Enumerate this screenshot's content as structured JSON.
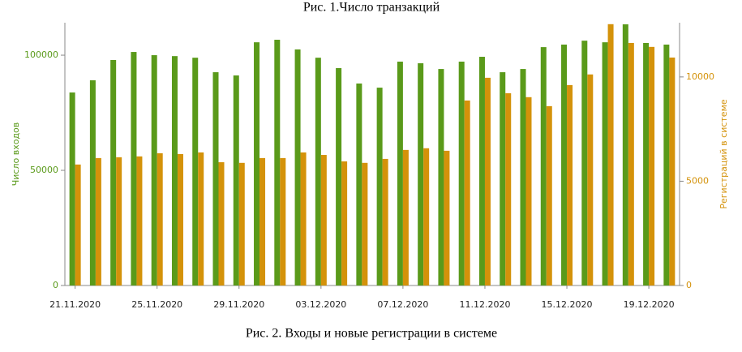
{
  "chart_data": {
    "type": "bar",
    "title": "Рис. 1.Число транзакций",
    "caption": "Рис. 2. Входы и новые регистрации в системе",
    "ylabel": "Число входов",
    "y2label": "Регистраций в системе",
    "categories": [
      "21.11.2020",
      null,
      null,
      null,
      "25.11.2020",
      null,
      null,
      null,
      "29.11.2020",
      null,
      null,
      null,
      "03.12.2020",
      null,
      null,
      null,
      "07.12.2020",
      null,
      null,
      null,
      "11.12.2020",
      null,
      null,
      null,
      "15.12.2020",
      null,
      null,
      null,
      "19.12.2020",
      null
    ],
    "series": [
      {
        "color": "#5a9a1a",
        "values": [
          83800,
          89100,
          97900,
          101400,
          100000,
          99600,
          98900,
          92600,
          91200,
          105600,
          106700,
          102500,
          98900,
          94400,
          87700,
          85900,
          97200,
          96500,
          94000,
          97200,
          99300,
          92600,
          94000,
          103500,
          104600,
          106300,
          105600,
          113400,
          105300,
          104600
        ]
      },
      {
        "color": "#d4920a",
        "axis": "y2",
        "values": [
          5800,
          6110,
          6150,
          6190,
          6340,
          6300,
          6380,
          5910,
          5880,
          6110,
          6110,
          6380,
          6260,
          5950,
          5880,
          6070,
          6500,
          6580,
          6460,
          8870,
          9960,
          9220,
          9030,
          8600,
          9610,
          10120,
          12530,
          11630,
          11440,
          10930
        ]
      }
    ],
    "ylim": [
      0,
      114100
    ],
    "yticks": [
      0,
      50000,
      100000
    ],
    "y2lim": [
      0,
      12600
    ],
    "y2ticks": [
      0,
      5000,
      10000
    ]
  }
}
